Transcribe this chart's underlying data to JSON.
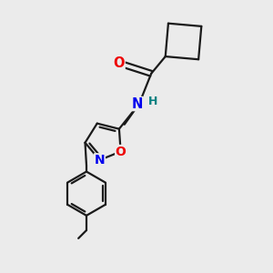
{
  "background_color": "#ebebeb",
  "bond_color": "#1a1a1a",
  "N_color": "#0000ee",
  "O_color": "#ee0000",
  "H_color": "#008080",
  "bond_width": 1.6,
  "figsize": [
    3.0,
    3.0
  ],
  "dpi": 100,
  "xlim": [
    0,
    10
  ],
  "ylim": [
    0,
    10
  ]
}
